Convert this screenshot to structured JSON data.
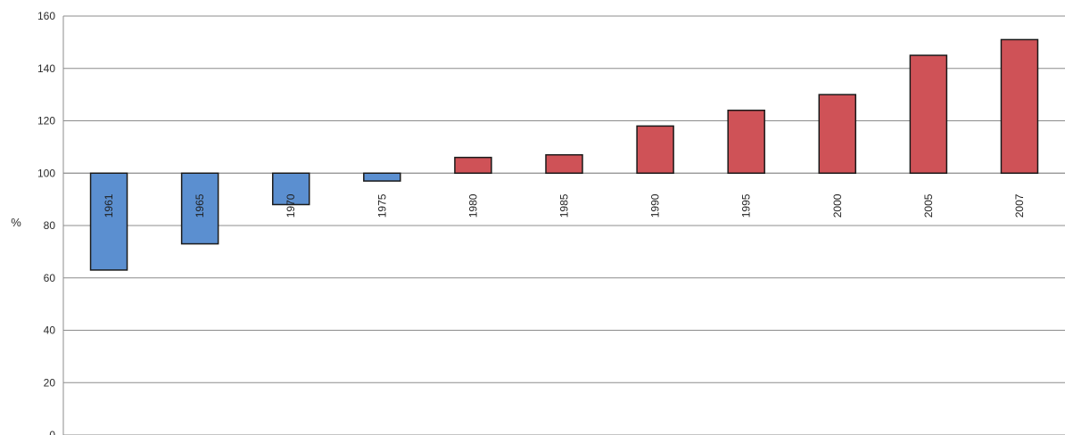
{
  "chart_data": {
    "type": "bar",
    "baseline": 100,
    "categories": [
      "1961",
      "1965",
      "1970",
      "1975",
      "1980",
      "1985",
      "1990",
      "1995",
      "2000",
      "2005",
      "2007"
    ],
    "values": [
      63,
      73,
      88,
      97,
      106,
      107,
      118,
      124,
      130,
      145,
      151
    ],
    "bar_colors": [
      "#5b8fd0",
      "#5b8fd0",
      "#5b8fd0",
      "#5b8fd0",
      "#cf5257",
      "#cf5257",
      "#cf5257",
      "#cf5257",
      "#cf5257",
      "#cf5257",
      "#cf5257"
    ],
    "ylabel": "%",
    "ylim": [
      0,
      160
    ],
    "yticks": [
      "0",
      "20",
      "40",
      "60",
      "80",
      "100",
      "120",
      "140",
      "160"
    ],
    "grid": true,
    "legend": "none"
  }
}
